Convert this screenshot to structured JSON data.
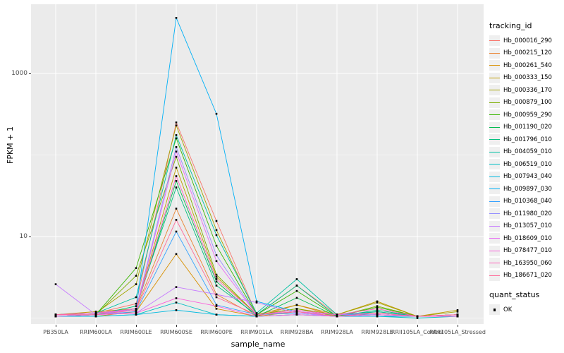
{
  "figure": {
    "y_axis": {
      "label": "FPKM + 1"
    },
    "x_axis": {
      "label": "sample_name"
    },
    "legend": {
      "tracking_title": "tracking_id",
      "quant_title": "quant_status",
      "quant_ok_label": "OK"
    }
  },
  "chart_data": {
    "type": "line",
    "title": "",
    "xlabel": "sample_name",
    "ylabel": "FPKM + 1",
    "y_scale": "log10",
    "y_major_ticks": [
      10,
      1000
    ],
    "y_minor_gridlines": [
      1,
      100
    ],
    "ylim": [
      0.85,
      7000
    ],
    "grid": true,
    "legend_position": "right",
    "point_color": "#000000",
    "panel_background": "#EBEBEB",
    "categories": [
      "PB350LA",
      "RRIM600LA",
      "RRIM600LE",
      "RRIM600SE",
      "RRIM600PE",
      "RRIM901LA",
      "RRIM928BA",
      "RRIM928LA",
      "RRIM928LE",
      "RRII105LA_Control",
      "RRII105LA_Stressed"
    ],
    "series": [
      {
        "name": "Hb_000016_290",
        "color": "#F8766D",
        "values": [
          1.1,
          1.15,
          1.5,
          250,
          15.5,
          1.1,
          2.5,
          1.1,
          1.15,
          1.05,
          1.1
        ]
      },
      {
        "name": "Hb_000215_120",
        "color": "#EA8331",
        "values": [
          1.05,
          1.1,
          1.3,
          22,
          1.95,
          1.05,
          1.45,
          1.05,
          1.1,
          1.05,
          1.05
        ]
      },
      {
        "name": "Hb_000261_540",
        "color": "#D89000",
        "values": [
          1.05,
          1.05,
          1.2,
          6.1,
          1.3,
          1.05,
          1.2,
          1.05,
          1.1,
          1.05,
          1.1
        ]
      },
      {
        "name": "Hb_000333_150",
        "color": "#C09B00",
        "values": [
          1.1,
          1.2,
          1.3,
          70,
          3.2,
          1.1,
          1.45,
          1.1,
          1.6,
          1.05,
          1.25
        ]
      },
      {
        "name": "Hb_000336_170",
        "color": "#A3A500",
        "values": [
          1.1,
          1.15,
          2.6,
          230,
          12,
          1.1,
          1.3,
          1.1,
          1.55,
          1.05,
          1.2
        ]
      },
      {
        "name": "Hb_000879_100",
        "color": "#7CAE00",
        "values": [
          1.05,
          1.1,
          3.3,
          95,
          3.4,
          1.1,
          1.3,
          1.05,
          1.4,
          1.05,
          1.1
        ]
      },
      {
        "name": "Hb_000959_290",
        "color": "#39B600",
        "values": [
          1.05,
          1.1,
          4.1,
          160,
          7.7,
          1.1,
          2.15,
          1.05,
          1.36,
          1.05,
          1.1
        ]
      },
      {
        "name": "Hb_001190_020",
        "color": "#00BB4E",
        "values": [
          1.05,
          1.1,
          1.3,
          48,
          2.8,
          1.05,
          1.77,
          1.05,
          1.2,
          1.05,
          1.05
        ]
      },
      {
        "name": "Hb_001796_010",
        "color": "#00BF7D",
        "values": [
          1.05,
          1.1,
          1.4,
          40,
          2.5,
          1.1,
          2.5,
          1.05,
          1.25,
          1.05,
          1.05
        ]
      },
      {
        "name": "Hb_004059_010",
        "color": "#00C1A3",
        "values": [
          1.1,
          1.15,
          1.8,
          175,
          10.4,
          1.15,
          3.0,
          1.1,
          1.2,
          1.05,
          1.1
        ]
      },
      {
        "name": "Hb_006519_010",
        "color": "#00BFC4",
        "values": [
          1.05,
          1.05,
          1.1,
          1.55,
          1.1,
          1.05,
          1.1,
          1.05,
          1.05,
          1.0,
          1.05
        ]
      },
      {
        "name": "Hb_007943_040",
        "color": "#00BAE0",
        "values": [
          1.05,
          1.05,
          1.1,
          1.25,
          1.1,
          1.05,
          1.1,
          1.05,
          1.05,
          1.05,
          1.05
        ]
      },
      {
        "name": "Hb_009897_030",
        "color": "#00B0F6",
        "values": [
          1.1,
          1.15,
          1.3,
          4800,
          320,
          1.6,
          1.2,
          1.1,
          1.1,
          1.05,
          1.1
        ]
      },
      {
        "name": "Hb_010368_040",
        "color": "#35A2FF",
        "values": [
          1.05,
          1.1,
          1.2,
          11.5,
          1.45,
          1.1,
          1.15,
          1.05,
          1.1,
          1.05,
          1.05
        ]
      },
      {
        "name": "Hb_011980_020",
        "color": "#9590FF",
        "values": [
          1.1,
          1.1,
          1.3,
          125,
          5.9,
          1.1,
          1.2,
          1.05,
          1.1,
          1.05,
          1.05
        ]
      },
      {
        "name": "Hb_013057_010",
        "color": "#C77CFF",
        "values": [
          2.6,
          1.1,
          1.15,
          2.4,
          1.95,
          1.55,
          1.15,
          1.05,
          1.1,
          1.05,
          1.05
        ]
      },
      {
        "name": "Hb_018609_010",
        "color": "#E76BF3",
        "values": [
          1.1,
          1.15,
          1.25,
          110,
          5.0,
          1.1,
          1.2,
          1.1,
          1.15,
          1.05,
          1.1
        ]
      },
      {
        "name": "Hb_078477_010",
        "color": "#FA62DB",
        "values": [
          1.05,
          1.1,
          1.15,
          1.75,
          1.4,
          1.05,
          1.1,
          1.05,
          1.1,
          1.05,
          1.05
        ]
      },
      {
        "name": "Hb_163950_060",
        "color": "#FF62BC",
        "values": [
          1.1,
          1.15,
          1.3,
          55,
          3.0,
          1.1,
          1.25,
          1.1,
          1.3,
          1.05,
          1.1
        ]
      },
      {
        "name": "Hb_186671_020",
        "color": "#FF6A98",
        "values": [
          1.1,
          1.1,
          1.25,
          16,
          1.8,
          1.1,
          1.2,
          1.05,
          1.15,
          1.05,
          1.1
        ]
      }
    ],
    "quant_status": {
      "label": "OK"
    }
  }
}
